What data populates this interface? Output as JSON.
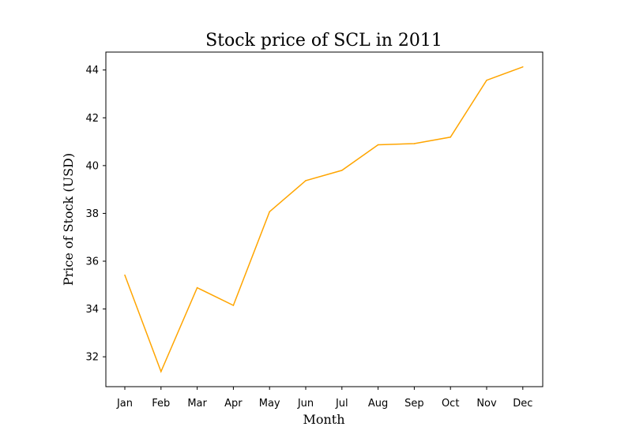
{
  "chart_data": {
    "type": "line",
    "title": "Stock price of SCL in 2011",
    "xlabel": "Month",
    "ylabel": "Price of Stock (USD)",
    "categories": [
      "Jan",
      "Feb",
      "Mar",
      "Apr",
      "May",
      "Jun",
      "Jul",
      "Aug",
      "Sep",
      "Oct",
      "Nov",
      "Dec"
    ],
    "series": [
      {
        "values": [
          35.42,
          31.38,
          34.89,
          34.15,
          38.07,
          39.37,
          39.8,
          40.87,
          40.92,
          41.19,
          43.57,
          44.13
        ],
        "color": "#ffa500"
      }
    ],
    "yticks": [
      32,
      34,
      36,
      38,
      40,
      42,
      44
    ],
    "ylim": [
      30.75,
      44.75
    ],
    "grid": false
  }
}
